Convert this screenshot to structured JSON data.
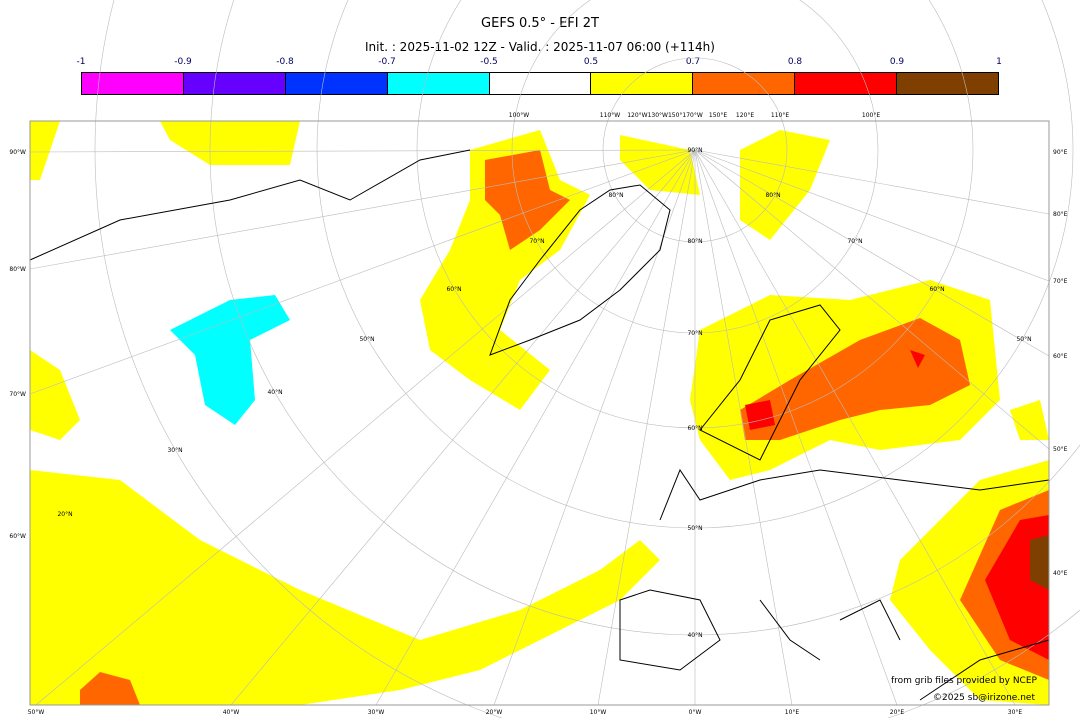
{
  "title": "GEFS 0.5° - EFI 2T",
  "subtitle": "Init. : 2025-11-02 12Z - Valid. : 2025-11-07 06:00 (+114h)",
  "colorbar": {
    "ticks": [
      "-1",
      "-0.9",
      "-0.8",
      "-0.7",
      "-0.5",
      "0.5",
      "0.7",
      "0.8",
      "0.9",
      "1"
    ],
    "colors": [
      "#ff00ff",
      "#6600ff",
      "#0033ff",
      "#00ffff",
      "#ffffff",
      "#ffff00",
      "#ff6600",
      "#ff0000",
      "#7f3f00"
    ]
  },
  "labels": {
    "left": [
      "90°W",
      "80°W",
      "70°W",
      "60°W"
    ],
    "right": [
      "90°E",
      "80°E",
      "70°E",
      "60°E",
      "50°E",
      "40°E"
    ],
    "bottom": [
      "50°W",
      "40°W",
      "30°W",
      "20°W",
      "10°W",
      "0°W",
      "10°E",
      "20°E",
      "30°E"
    ],
    "top": [
      "100°W",
      "110°W",
      "120°W130°W150°170°W",
      "150°E",
      "120°E",
      "110°E",
      "100°E"
    ],
    "lat": [
      "90°N",
      "80°N",
      "80°N",
      "80°N",
      "70°N",
      "70°N",
      "70°N",
      "60°N",
      "60°N",
      "60°N",
      "50°N",
      "50°N",
      "50°N",
      "40°N",
      "40°N",
      "30°N",
      "20°N"
    ]
  },
  "credits": {
    "source": "from grib files provided by NCEP",
    "copyright": "©2025 sb@irizone.net"
  }
}
